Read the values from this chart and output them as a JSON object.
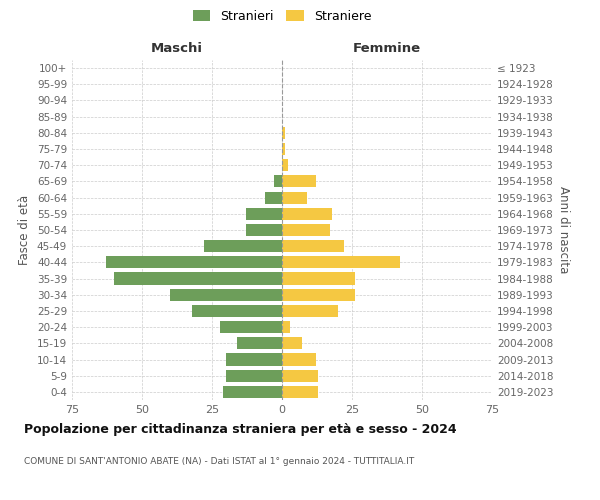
{
  "age_groups": [
    "100+",
    "95-99",
    "90-94",
    "85-89",
    "80-84",
    "75-79",
    "70-74",
    "65-69",
    "60-64",
    "55-59",
    "50-54",
    "45-49",
    "40-44",
    "35-39",
    "30-34",
    "25-29",
    "20-24",
    "15-19",
    "10-14",
    "5-9",
    "0-4"
  ],
  "birth_years": [
    "≤ 1923",
    "1924-1928",
    "1929-1933",
    "1934-1938",
    "1939-1943",
    "1944-1948",
    "1949-1953",
    "1954-1958",
    "1959-1963",
    "1964-1968",
    "1969-1973",
    "1974-1978",
    "1979-1983",
    "1984-1988",
    "1989-1993",
    "1994-1998",
    "1999-2003",
    "2004-2008",
    "2009-2013",
    "2014-2018",
    "2019-2023"
  ],
  "males": [
    0,
    0,
    0,
    0,
    0,
    0,
    0,
    3,
    6,
    13,
    13,
    28,
    63,
    60,
    40,
    32,
    22,
    16,
    20,
    20,
    21
  ],
  "females": [
    0,
    0,
    0,
    0,
    1,
    1,
    2,
    12,
    9,
    18,
    17,
    22,
    42,
    26,
    26,
    20,
    3,
    7,
    12,
    13,
    13
  ],
  "male_color": "#6d9e5a",
  "female_color": "#f5c842",
  "title": "Popolazione per cittadinanza straniera per età e sesso - 2024",
  "subtitle": "COMUNE DI SANT'ANTONIO ABATE (NA) - Dati ISTAT al 1° gennaio 2024 - TUTTITALIA.IT",
  "left_header": "Maschi",
  "right_header": "Femmine",
  "ylabel": "Fasce di età",
  "right_ylabel": "Anni di nascita",
  "legend_male": "Stranieri",
  "legend_female": "Straniere",
  "xlim": 75,
  "background_color": "#ffffff",
  "grid_color": "#cccccc"
}
